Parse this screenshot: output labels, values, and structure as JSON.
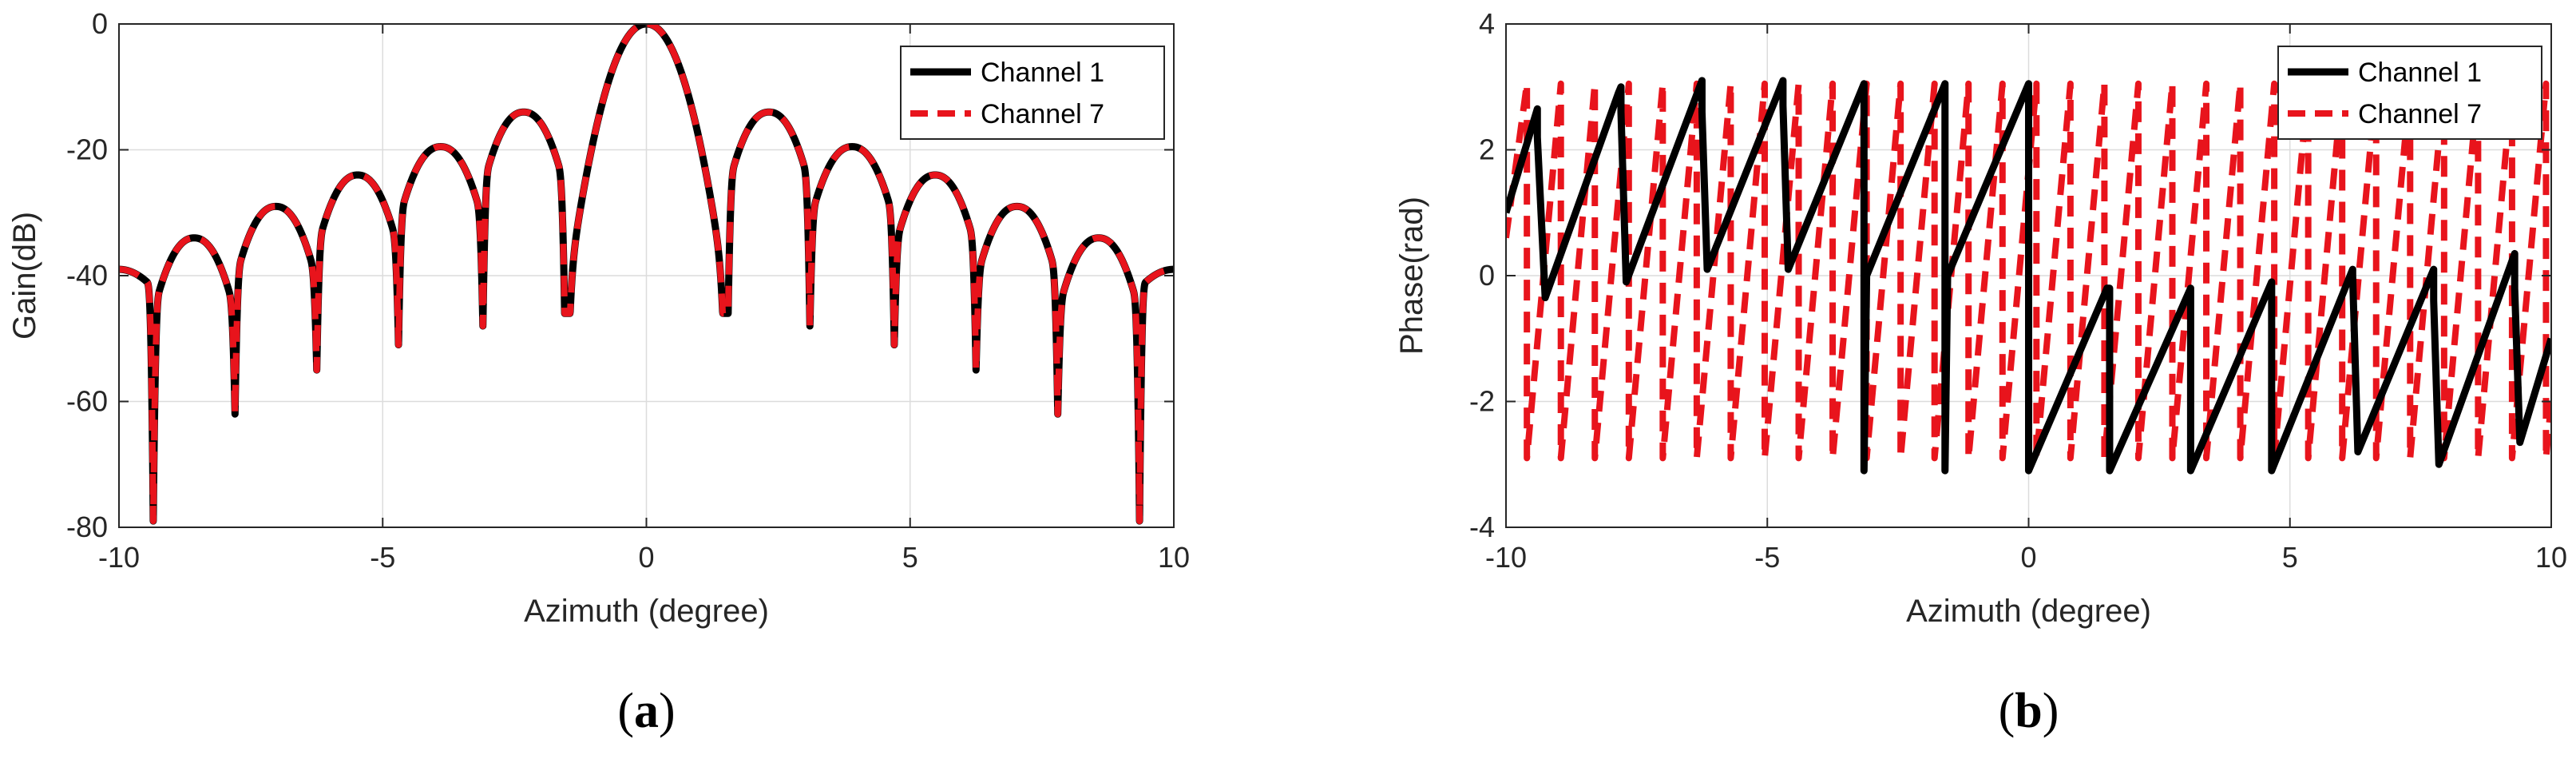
{
  "chart_data": [
    {
      "type": "line",
      "panel_label": {
        "open": "(",
        "letter": "a",
        "close": ")"
      },
      "title": "",
      "xlabel": "Azimuth (degree)",
      "ylabel": "Gain(dB)",
      "xlim": [
        -10,
        10
      ],
      "ylim": [
        -80,
        0
      ],
      "xticks": [
        -10,
        -5,
        0,
        5,
        10
      ],
      "yticks": [
        -80,
        -60,
        -40,
        -20,
        0
      ],
      "xtick_labels": [
        "-10",
        "-5",
        "0",
        "5",
        "10"
      ],
      "ytick_labels": [
        "-80",
        "-60",
        "-40",
        "-20",
        "0"
      ],
      "grid": true,
      "legend": {
        "position": "top-right",
        "entries": [
          "Channel 1",
          "Channel 7"
        ]
      },
      "series": [
        {
          "name": "Channel 1",
          "color": "#000000",
          "style": "solid",
          "description_values": {
            "x_range": [
              -10,
              10
            ],
            "peak": [
              0,
              0
            ],
            "sidelobe_peaks": [
              [
                -2.2,
                -14
              ],
              [
                -3.8,
                -19.5
              ],
              [
                -5.4,
                -24
              ],
              [
                -6.9,
                -29
              ],
              [
                -8.5,
                -34
              ],
              [
                2.2,
                -14
              ],
              [
                3.8,
                -19.5
              ],
              [
                5.4,
                -24
              ],
              [
                6.9,
                -29
              ],
              [
                8.5,
                -34
              ]
            ],
            "nulls": [
              [
                -1.55,
                -46
              ],
              [
                -3.1,
                -48
              ],
              [
                -4.7,
                -51
              ],
              [
                -6.25,
                -55
              ],
              [
                -7.8,
                -62
              ],
              [
                -9.35,
                -79
              ],
              [
                1.55,
                -46
              ],
              [
                3.1,
                -48
              ],
              [
                4.7,
                -51
              ],
              [
                6.25,
                -55
              ],
              [
                7.8,
                -62
              ],
              [
                9.35,
                -79
              ]
            ],
            "edge_value": -39
          }
        },
        {
          "name": "Channel 7",
          "color": "#e8141c",
          "style": "dashed",
          "description_values": {
            "same_as": "Channel 1"
          }
        }
      ]
    },
    {
      "type": "line",
      "panel_label": {
        "open": "(",
        "letter": "b",
        "close": ")"
      },
      "title": "",
      "xlabel": "Azimuth (degree)",
      "ylabel": "Phase(rad)",
      "xlim": [
        -10,
        10
      ],
      "ylim": [
        -4,
        4
      ],
      "xticks": [
        -10,
        -5,
        0,
        5,
        10
      ],
      "yticks": [
        -4,
        -2,
        0,
        2,
        4
      ],
      "xtick_labels": [
        "-10",
        "-5",
        "0",
        "5",
        "10"
      ],
      "ytick_labels": [
        "-4",
        "-2",
        "0",
        "2",
        "4"
      ],
      "grid": true,
      "legend": {
        "position": "top-right",
        "entries": [
          "Channel 1",
          "Channel 7"
        ]
      },
      "series": [
        {
          "name": "Channel 1",
          "color": "#000000",
          "style": "solid",
          "points": [
            [
              -10,
              1.0
            ],
            [
              -9.4,
              2.65
            ],
            [
              -9.4,
              2.2
            ],
            [
              -9.25,
              -0.35
            ],
            [
              -7.85,
              2.9
            ],
            [
              -7.8,
              3.0
            ],
            [
              -7.8,
              2.6
            ],
            [
              -7.7,
              -0.1
            ],
            [
              -6.25,
              3.1
            ],
            [
              -6.25,
              2.6
            ],
            [
              -6.15,
              0.1
            ],
            [
              -4.7,
              3.1
            ],
            [
              -4.7,
              2.7
            ],
            [
              -4.6,
              0.1
            ],
            [
              -3.15,
              3.05
            ],
            [
              -3.15,
              -3.1
            ],
            [
              -3.1,
              0.0
            ],
            [
              -1.6,
              3.05
            ],
            [
              -1.6,
              -3.1
            ],
            [
              -1.55,
              0.0
            ],
            [
              0.0,
              3.05
            ],
            [
              0.0,
              -3.1
            ],
            [
              1.5,
              -0.2
            ],
            [
              1.55,
              -0.2
            ],
            [
              1.55,
              -3.1
            ],
            [
              3.1,
              -0.2
            ],
            [
              3.1,
              -3.1
            ],
            [
              4.65,
              -0.1
            ],
            [
              4.65,
              -3.1
            ],
            [
              6.2,
              0.1
            ],
            [
              6.2,
              0.0
            ],
            [
              6.3,
              -2.8
            ],
            [
              7.75,
              0.1
            ],
            [
              7.75,
              -0.4
            ],
            [
              7.85,
              -3.0
            ],
            [
              9.3,
              0.35
            ],
            [
              9.3,
              -0.2
            ],
            [
              9.4,
              -2.65
            ],
            [
              10,
              -1.0
            ]
          ]
        },
        {
          "name": "Channel 7",
          "color": "#e8141c",
          "style": "dashed",
          "points": [
            [
              -10,
              0.6
            ],
            [
              -9.6,
              3.05
            ],
            [
              -9.6,
              -2.9
            ],
            [
              -8.95,
              3.05
            ],
            [
              -8.95,
              -2.9
            ],
            [
              -8.3,
              3.05
            ],
            [
              -8.3,
              -2.9
            ],
            [
              -7.65,
              3.05
            ],
            [
              -7.65,
              -2.9
            ],
            [
              -7.0,
              3.05
            ],
            [
              -7.0,
              -2.9
            ],
            [
              -6.35,
              3.05
            ],
            [
              -6.35,
              -2.9
            ],
            [
              -5.7,
              3.05
            ],
            [
              -5.7,
              -2.9
            ],
            [
              -5.05,
              3.05
            ],
            [
              -5.05,
              -2.9
            ],
            [
              -4.4,
              3.05
            ],
            [
              -4.4,
              -2.9
            ],
            [
              -3.75,
              3.05
            ],
            [
              -3.75,
              -2.9
            ],
            [
              -3.1,
              3.05
            ],
            [
              -3.1,
              -2.9
            ],
            [
              -2.45,
              3.05
            ],
            [
              -2.45,
              -2.9
            ],
            [
              -1.8,
              3.05
            ],
            [
              -1.8,
              -2.9
            ],
            [
              -1.15,
              3.05
            ],
            [
              -1.15,
              -2.9
            ],
            [
              -0.5,
              3.05
            ],
            [
              -0.5,
              -2.9
            ],
            [
              0.15,
              3.05
            ],
            [
              0.15,
              -2.9
            ],
            [
              0.8,
              3.05
            ],
            [
              0.8,
              -2.9
            ],
            [
              1.45,
              3.05
            ],
            [
              1.45,
              -2.9
            ],
            [
              2.1,
              3.05
            ],
            [
              2.1,
              -2.9
            ],
            [
              2.75,
              3.05
            ],
            [
              2.75,
              -2.9
            ],
            [
              3.4,
              3.05
            ],
            [
              3.4,
              -2.9
            ],
            [
              4.05,
              3.05
            ],
            [
              4.05,
              -2.9
            ],
            [
              4.7,
              3.05
            ],
            [
              4.7,
              -2.9
            ],
            [
              5.35,
              3.05
            ],
            [
              5.35,
              -2.9
            ],
            [
              6.0,
              3.05
            ],
            [
              6.0,
              -2.9
            ],
            [
              6.65,
              3.05
            ],
            [
              6.65,
              -2.9
            ],
            [
              7.3,
              3.05
            ],
            [
              7.3,
              -2.9
            ],
            [
              7.95,
              3.05
            ],
            [
              7.95,
              -2.9
            ],
            [
              8.6,
              3.05
            ],
            [
              8.6,
              -2.9
            ],
            [
              9.25,
              3.05
            ],
            [
              9.25,
              -2.9
            ],
            [
              9.9,
              3.05
            ],
            [
              9.9,
              -2.9
            ],
            [
              10,
              -2.0
            ]
          ]
        }
      ]
    }
  ]
}
